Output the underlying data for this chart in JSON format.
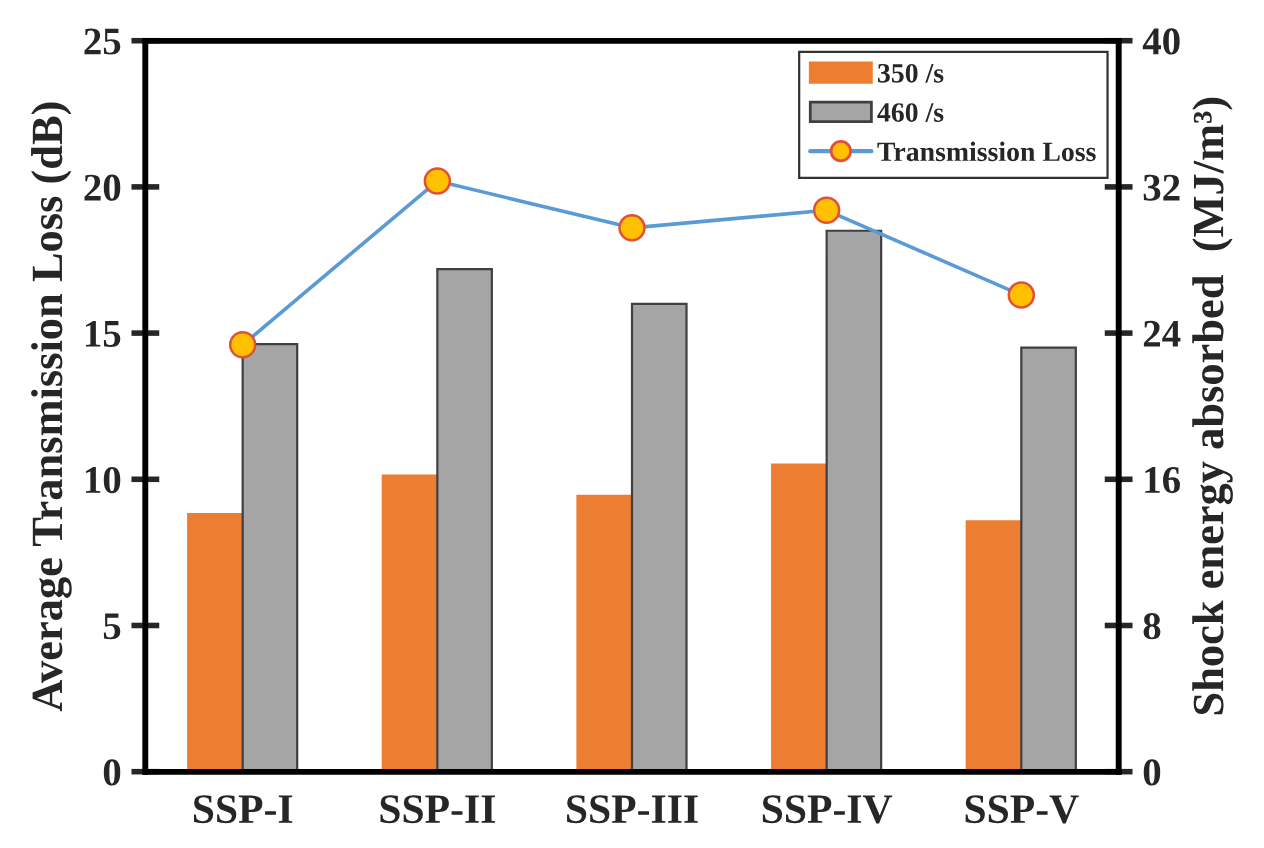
{
  "chart_data": {
    "type": "bar",
    "ylabel": "Average Transmission Loss (dB)",
    "y2label": "Shock energy absorbed  (MJ/m³)",
    "categories": [
      "SSP-I",
      "SSP-II",
      "SSP-III",
      "SSP-IV",
      "SSP-V"
    ],
    "series": [
      {
        "name": "350 /s",
        "color": "#ed7d31",
        "axis": "y2",
        "values": [
          14.1,
          16.2,
          15.1,
          16.8,
          13.7
        ]
      },
      {
        "name": "460 /s",
        "color": "#a5a5a5",
        "axis": "y2",
        "values": [
          23.4,
          27.5,
          25.6,
          29.6,
          23.2
        ]
      },
      {
        "name": "Transmission Loss",
        "type": "line",
        "color": "#5b9bd5",
        "marker": "circle",
        "values": [
          14.6,
          20.2,
          18.6,
          19.2,
          16.3
        ]
      }
    ],
    "ylim": [
      0,
      25
    ],
    "yticks": [
      0,
      5,
      10,
      15,
      20,
      25
    ],
    "y2lim": [
      0,
      40
    ],
    "y2ticks": [
      0,
      8,
      16,
      24,
      32,
      40
    ],
    "grid": false,
    "legend": "top right"
  }
}
